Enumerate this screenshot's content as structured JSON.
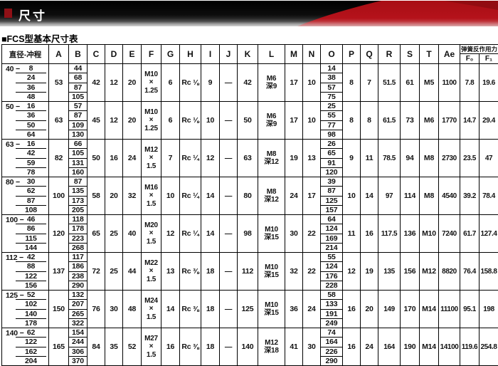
{
  "banner": {
    "title": "尺寸"
  },
  "section": {
    "title": "■FCS型基本尺寸表"
  },
  "colors": {
    "accent_red": "#b5121b",
    "banner_dark_red": "#8a0c10",
    "banner_black": "#0c0c0c"
  },
  "table": {
    "stroke_separator": "−",
    "header": {
      "col0": "直径-冲程",
      "letters": [
        "A",
        "B",
        "C",
        "D",
        "E",
        "F",
        "G",
        "H",
        "I",
        "J",
        "K",
        "L",
        "M",
        "N",
        "O",
        "P",
        "Q",
        "R",
        "S",
        "T",
        "Ae"
      ],
      "spring_group": "弹簧反作用力",
      "spring_subs": [
        "F₀",
        "F₁"
      ]
    },
    "groups": [
      {
        "diameter": "40",
        "strokes": [
          "8",
          "24",
          "36",
          "48"
        ],
        "A": "53",
        "B": [
          "44",
          "68",
          "87",
          "105"
        ],
        "C": "42",
        "D": "12",
        "E": "20",
        "F": [
          "M10",
          "×",
          "1.25"
        ],
        "G": "6",
        "H": "Rc ⅛",
        "I": "9",
        "J": "—",
        "K": "42",
        "L": [
          "M6",
          "深9"
        ],
        "M": "17",
        "N": "10",
        "O": [
          "14",
          "38",
          "57",
          "75"
        ],
        "P": "8",
        "Q": "7",
        "R": "51.5",
        "S": "61",
        "T": "M5",
        "Ae": "1100",
        "F0": "7.8",
        "F1": "19.6"
      },
      {
        "diameter": "50",
        "strokes": [
          "16",
          "36",
          "50",
          "64"
        ],
        "A": "63",
        "B": [
          "57",
          "87",
          "109",
          "130"
        ],
        "C": "45",
        "D": "12",
        "E": "20",
        "F": [
          "M10",
          "×",
          "1.25"
        ],
        "G": "6",
        "H": "Rc ⅛",
        "I": "10",
        "J": "—",
        "K": "50",
        "L": [
          "M6",
          "深9"
        ],
        "M": "17",
        "N": "10",
        "O": [
          "25",
          "55",
          "77",
          "98"
        ],
        "P": "8",
        "Q": "8",
        "R": "61.5",
        "S": "73",
        "T": "M6",
        "Ae": "1770",
        "F0": "14.7",
        "F1": "29.4"
      },
      {
        "diameter": "63",
        "strokes": [
          "16",
          "42",
          "59",
          "78"
        ],
        "A": "82",
        "B": [
          "66",
          "105",
          "131",
          "160"
        ],
        "C": "50",
        "D": "16",
        "E": "24",
        "F": [
          "M12",
          "×",
          "1.5"
        ],
        "G": "7",
        "H": "Rc ¼",
        "I": "12",
        "J": "—",
        "K": "63",
        "L": [
          "M8",
          "深12"
        ],
        "M": "19",
        "N": "13",
        "O": [
          "26",
          "65",
          "91",
          "120"
        ],
        "P": "9",
        "Q": "11",
        "R": "78.5",
        "S": "94",
        "T": "M8",
        "Ae": "2730",
        "F0": "23.5",
        "F1": "47"
      },
      {
        "diameter": "80",
        "strokes": [
          "30",
          "62",
          "87",
          "108"
        ],
        "A": "100",
        "B": [
          "87",
          "135",
          "173",
          "205"
        ],
        "C": "58",
        "D": "20",
        "E": "32",
        "F": [
          "M16",
          "×",
          "1.5"
        ],
        "G": "10",
        "H": "Rc ¼",
        "I": "14",
        "J": "—",
        "K": "80",
        "L": [
          "M8",
          "深12"
        ],
        "M": "24",
        "N": "17",
        "O": [
          "39",
          "87",
          "125",
          "157"
        ],
        "P": "10",
        "Q": "14",
        "R": "97",
        "S": "114",
        "T": "M8",
        "Ae": "4540",
        "F0": "39.2",
        "F1": "78.4"
      },
      {
        "diameter": "100",
        "strokes": [
          "46",
          "86",
          "115",
          "144"
        ],
        "A": "120",
        "B": [
          "118",
          "178",
          "223",
          "268"
        ],
        "C": "65",
        "D": "25",
        "E": "40",
        "F": [
          "M20",
          "×",
          "1.5"
        ],
        "G": "12",
        "H": "Rc ¼",
        "I": "14",
        "J": "—",
        "K": "98",
        "L": [
          "M10",
          "深15"
        ],
        "M": "30",
        "N": "22",
        "O": [
          "64",
          "124",
          "169",
          "214"
        ],
        "P": "11",
        "Q": "16",
        "R": "117.5",
        "S": "136",
        "T": "M10",
        "Ae": "7240",
        "F0": "61.7",
        "F1": "127.4"
      },
      {
        "diameter": "112",
        "strokes": [
          "42",
          "88",
          "122",
          "156"
        ],
        "A": "137",
        "B": [
          "117",
          "186",
          "238",
          "290"
        ],
        "C": "72",
        "D": "25",
        "E": "44",
        "F": [
          "M22",
          "×",
          "1.5"
        ],
        "G": "13",
        "H": "Rc ⅜",
        "I": "18",
        "J": "—",
        "K": "112",
        "L": [
          "M10",
          "深15"
        ],
        "M": "32",
        "N": "22",
        "O": [
          "55",
          "124",
          "176",
          "228"
        ],
        "P": "12",
        "Q": "19",
        "R": "135",
        "S": "156",
        "T": "M12",
        "Ae": "8820",
        "F0": "76.4",
        "F1": "158.8"
      },
      {
        "diameter": "125",
        "strokes": [
          "52",
          "102",
          "140",
          "178"
        ],
        "A": "150",
        "B": [
          "132",
          "207",
          "265",
          "322"
        ],
        "C": "76",
        "D": "30",
        "E": "48",
        "F": [
          "M24",
          "×",
          "1.5"
        ],
        "G": "14",
        "H": "Rc ⅜",
        "I": "18",
        "J": "—",
        "K": "125",
        "L": [
          "M10",
          "深15"
        ],
        "M": "36",
        "N": "24",
        "O": [
          "58",
          "133",
          "191",
          "249"
        ],
        "P": "16",
        "Q": "20",
        "R": "149",
        "S": "170",
        "T": "M14",
        "Ae": "11100",
        "F0": "95.1",
        "F1": "198"
      },
      {
        "diameter": "140",
        "strokes": [
          "62",
          "122",
          "162",
          "204"
        ],
        "A": "165",
        "B": [
          "154",
          "244",
          "306",
          "370"
        ],
        "C": "84",
        "D": "35",
        "E": "52",
        "F": [
          "M27",
          "×",
          "1.5"
        ],
        "G": "16",
        "H": "Rc ⅜",
        "I": "18",
        "J": "—",
        "K": "140",
        "L": [
          "M12",
          "深18"
        ],
        "M": "41",
        "N": "30",
        "O": [
          "74",
          "164",
          "226",
          "290"
        ],
        "P": "16",
        "Q": "24",
        "R": "164",
        "S": "190",
        "T": "M14",
        "Ae": "14100",
        "F0": "119.6",
        "F1": "254.8"
      }
    ]
  }
}
